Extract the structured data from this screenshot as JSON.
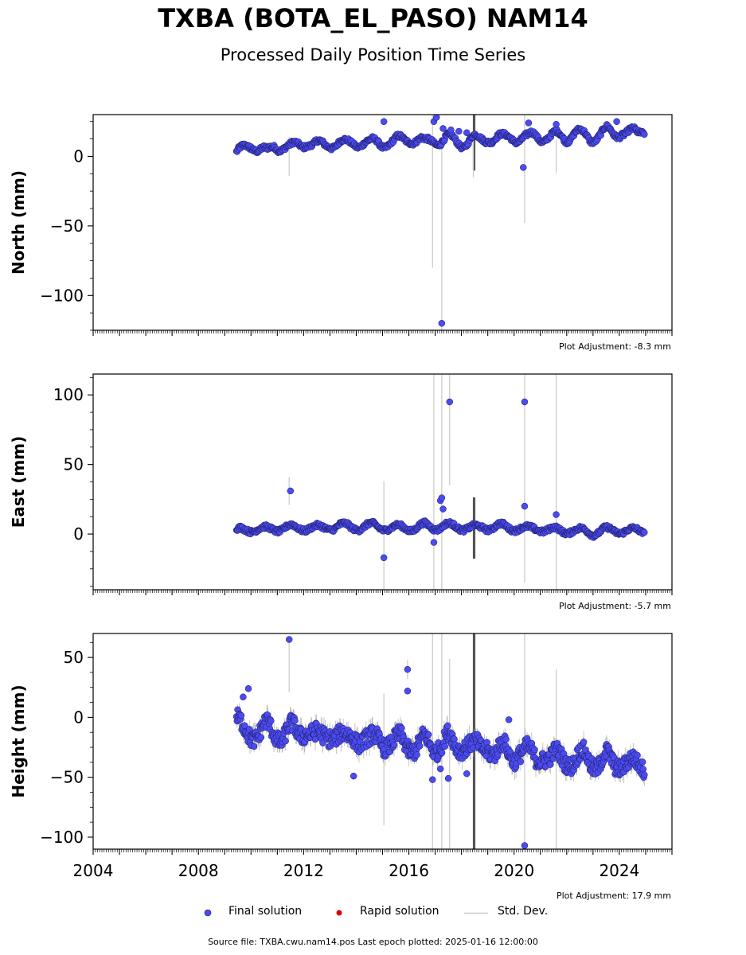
{
  "title": "TXBA (BOTA_EL_PASO) NAM14",
  "subtitle": "Processed Daily Position Time Series",
  "legend": {
    "final": "Final solution",
    "rapid": "Rapid solution",
    "std": "Std. Dev."
  },
  "footer": "Source file: TXBA.cwu.nam14.pos  Last epoch plotted: 2025-01-16 12:00:00",
  "colors": {
    "final": "#4b4bf0",
    "final_edge": "#1a1a5a",
    "rapid": "#dd0000",
    "std": "#c8c8c8",
    "std_dark": "#555555"
  },
  "chart_data": [
    {
      "type": "scatter",
      "ylabel": "North (mm)",
      "plot_adjustment": "Plot Adjustment: -8.3 mm",
      "xlim": [
        2004.0,
        2026.0
      ],
      "ylim": [
        -125,
        30
      ],
      "yticks": [
        0,
        -50,
        -100
      ],
      "ytick_labels": [
        "0",
        "−50",
        "−100"
      ],
      "series": [
        {
          "x": [
            2009.45,
            2009.6,
            2009.8,
            2010.0,
            2010.3,
            2010.6,
            2010.9,
            2011.2,
            2011.5,
            2011.8,
            2012.1,
            2012.4,
            2012.7,
            2013.0,
            2013.3,
            2013.6,
            2013.9,
            2014.2,
            2014.5,
            2014.8,
            2015.1,
            2015.4,
            2015.7,
            2016.0,
            2016.3,
            2016.6,
            2016.9,
            2017.2,
            2017.5,
            2017.8,
            2018.1,
            2018.4,
            2018.7,
            2019.0,
            2019.3,
            2019.6,
            2019.9,
            2020.2,
            2020.5,
            2020.8,
            2021.1,
            2021.4,
            2021.7,
            2022.0,
            2022.3,
            2022.6,
            2022.9,
            2023.2,
            2023.5,
            2023.8,
            2024.1,
            2024.4,
            2024.7,
            2024.95
          ],
          "y": [
            0,
            3,
            8,
            10,
            4,
            2,
            9,
            7,
            5,
            9,
            11,
            7,
            8,
            10,
            9,
            8,
            11,
            10,
            8,
            11,
            10,
            9,
            12,
            14,
            11,
            9,
            13,
            11,
            12,
            11,
            10,
            12,
            11,
            14,
            13,
            12,
            15,
            13,
            12,
            16,
            14,
            13,
            15,
            14,
            17,
            15,
            13,
            16,
            18,
            15,
            19,
            17,
            15,
            20
          ]
        },
        {
          "x": [
            2015.05,
            2016.95,
            2017.05,
            2017.25,
            2017.3,
            2017.6,
            2017.9,
            2018.2,
            2020.35,
            2020.55,
            2021.6,
            2023.9
          ],
          "y": [
            25,
            25,
            28,
            -120,
            20,
            19,
            18,
            17,
            -8,
            24,
            23,
            25
          ]
        }
      ]
    },
    {
      "type": "scatter",
      "ylabel": "East (mm)",
      "plot_adjustment": "Plot Adjustment: -5.7 mm",
      "xlim": [
        2004.0,
        2026.0
      ],
      "ylim": [
        -40,
        115
      ],
      "yticks": [
        100,
        50,
        0
      ],
      "ytick_labels": [
        "100",
        "50",
        "0"
      ],
      "series": [
        {
          "x": [
            2009.45,
            2009.8,
            2010.2,
            2010.6,
            2011.0,
            2011.4,
            2011.8,
            2012.2,
            2012.6,
            2013.0,
            2013.4,
            2013.8,
            2014.2,
            2014.6,
            2015.0,
            2015.4,
            2015.8,
            2016.2,
            2016.6,
            2017.0,
            2017.4,
            2017.8,
            2018.2,
            2018.6,
            2019.0,
            2019.4,
            2019.8,
            2020.2,
            2020.6,
            2021.0,
            2021.4,
            2021.8,
            2022.2,
            2022.6,
            2023.0,
            2023.4,
            2023.8,
            2024.2,
            2024.6,
            2024.95
          ],
          "y": [
            2,
            3,
            4,
            3,
            4,
            5,
            4,
            5,
            4,
            5,
            6,
            5,
            5,
            6,
            5,
            4,
            5,
            4,
            6,
            5,
            6,
            5,
            5,
            4,
            5,
            6,
            4,
            5,
            3,
            4,
            3,
            2,
            3,
            2,
            1,
            3,
            2,
            3,
            2,
            2
          ]
        },
        {
          "x": [
            2011.5,
            2015.05,
            2017.2,
            2017.25,
            2017.3,
            2017.55,
            2020.4,
            2020.4,
            2021.6,
            2016.95
          ],
          "y": [
            31,
            -17,
            24,
            26,
            18,
            95,
            95,
            20,
            14,
            -6
          ]
        }
      ]
    },
    {
      "type": "scatter",
      "ylabel": "Height (mm)",
      "plot_adjustment": "Plot Adjustment: 17.9 mm",
      "xlim": [
        2004.0,
        2026.0
      ],
      "ylim": [
        -110,
        70
      ],
      "yticks": [
        50,
        0,
        -50,
        -100
      ],
      "ytick_labels": [
        "50",
        "0",
        "−50",
        "−100"
      ],
      "xticks": [
        2004,
        2008,
        2012,
        2016,
        2020,
        2024
      ],
      "xtick_labels": [
        "2004",
        "2008",
        "2012",
        "2016",
        "2020",
        "2024"
      ],
      "series": [
        {
          "x": [
            2009.45,
            2009.7,
            2010.0,
            2010.3,
            2010.6,
            2010.9,
            2011.2,
            2011.5,
            2011.8,
            2012.1,
            2012.4,
            2012.7,
            2013.0,
            2013.3,
            2013.6,
            2013.9,
            2014.2,
            2014.5,
            2014.8,
            2015.1,
            2015.4,
            2015.7,
            2016.0,
            2016.3,
            2016.6,
            2016.9,
            2017.2,
            2017.5,
            2017.8,
            2018.1,
            2018.4,
            2018.7,
            2019.0,
            2019.3,
            2019.6,
            2019.9,
            2020.2,
            2020.5,
            2020.8,
            2021.1,
            2021.4,
            2021.7,
            2022.0,
            2022.3,
            2022.6,
            2022.9,
            2023.2,
            2023.5,
            2023.8,
            2024.1,
            2024.4,
            2024.7,
            2024.95
          ],
          "y": [
            -5,
            -10,
            -12,
            -15,
            -8,
            -12,
            -16,
            -10,
            -14,
            -8,
            -16,
            -18,
            -12,
            -15,
            -20,
            -14,
            -18,
            -22,
            -16,
            -20,
            -24,
            -18,
            -22,
            -26,
            -20,
            -24,
            -22,
            -18,
            -26,
            -20,
            -24,
            -28,
            -22,
            -30,
            -26,
            -32,
            -28,
            -30,
            -34,
            -30,
            -36,
            -32,
            -34,
            -38,
            -32,
            -36,
            -38,
            -34,
            -40,
            -36,
            -38,
            -42,
            -40
          ]
        },
        {
          "x": [
            2009.7,
            2009.9,
            2011.45,
            2013.9,
            2015.95,
            2015.95,
            2016.9,
            2017.2,
            2017.5,
            2018.2,
            2019.8,
            2020.4
          ],
          "y": [
            17,
            24,
            65,
            -49,
            40,
            22,
            -52,
            -43,
            -51,
            -47,
            -2,
            -107
          ]
        }
      ]
    }
  ]
}
